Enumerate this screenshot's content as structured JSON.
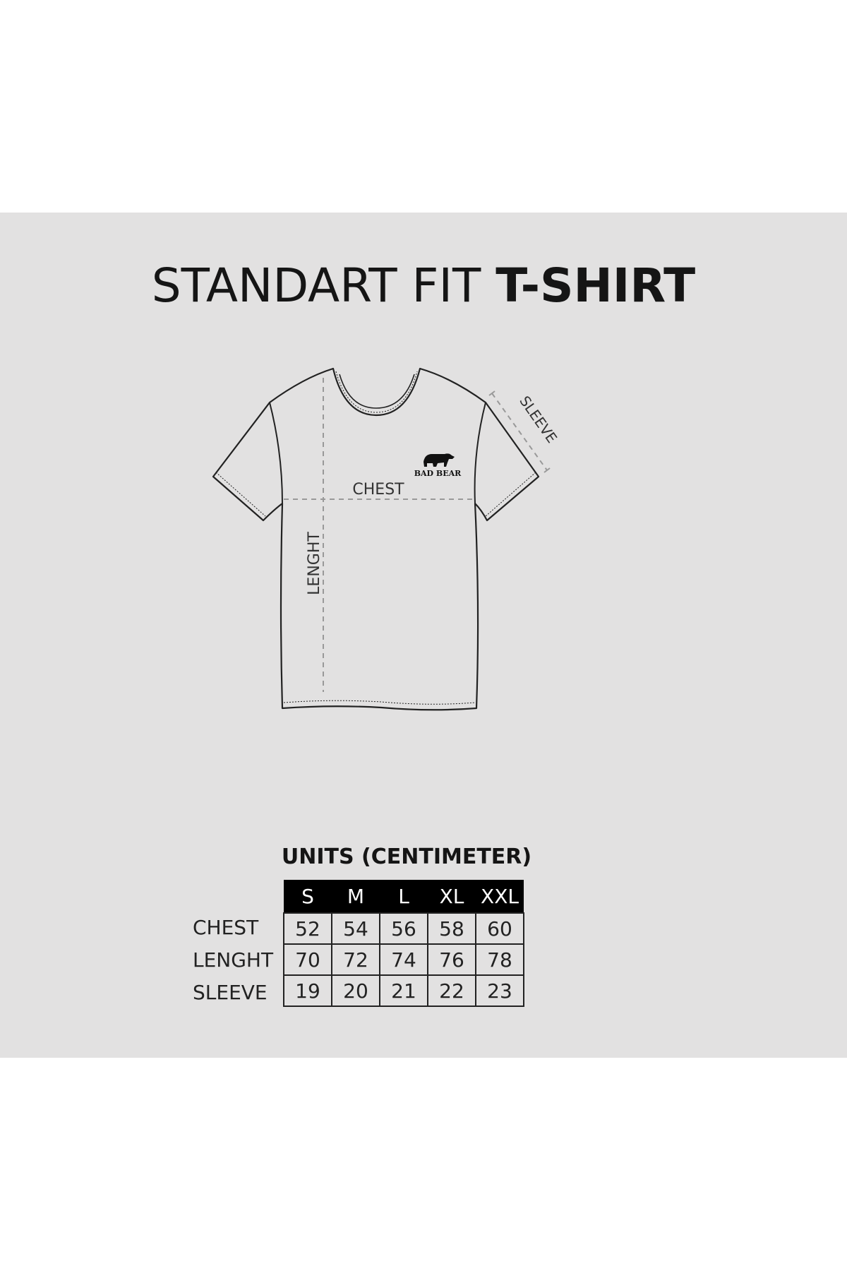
{
  "title": {
    "regular": "STANDART FIT",
    "bold": "T-SHIRT"
  },
  "diagram": {
    "labels": {
      "chest": "CHEST",
      "length": "LENGHT",
      "sleeve": "SLEEVE"
    },
    "logo_text": "BAD BEAR"
  },
  "size_table": {
    "caption": "UNITS (CENTIMETER)",
    "sizes": [
      "S",
      "M",
      "L",
      "XL",
      "XXL"
    ],
    "rows": [
      {
        "label": "CHEST",
        "values": [
          "52",
          "54",
          "56",
          "58",
          "60"
        ]
      },
      {
        "label": "LENGHT",
        "values": [
          "70",
          "72",
          "74",
          "76",
          "78"
        ]
      },
      {
        "label": "SLEEVE",
        "values": [
          "19",
          "20",
          "21",
          "22",
          "23"
        ]
      }
    ]
  },
  "colors": {
    "panel": "#e2e1e1",
    "header": "#000000"
  }
}
